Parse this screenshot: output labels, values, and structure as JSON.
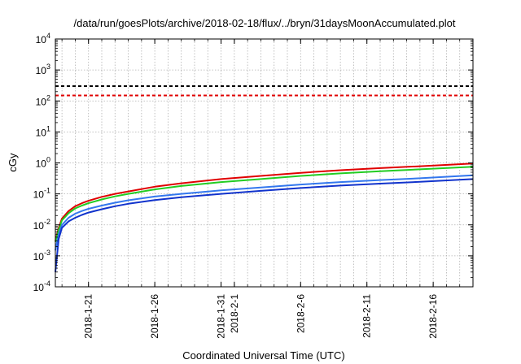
{
  "chart_data": {
    "type": "line",
    "title": "/data/run/goesPlots/archive/2018-02-18/flux/../bryn/31daysMoonAccumulated.plot",
    "xlabel": "Coordinated Universal Time (UTC)",
    "ylabel": "cGy",
    "yscale": "log",
    "ylim": [
      0.0001,
      10000
    ],
    "xlim": [
      "2018-01-18T12:00",
      "2018-02-19T00:00"
    ],
    "grid": true,
    "y_ticks": [
      {
        "base": "10",
        "exp": "-4",
        "value": 0.0001
      },
      {
        "base": "10",
        "exp": "-3",
        "value": 0.001
      },
      {
        "base": "10",
        "exp": "-2",
        "value": 0.01
      },
      {
        "base": "10",
        "exp": "-1",
        "value": 0.1
      },
      {
        "base": "10",
        "exp": "0",
        "value": 1
      },
      {
        "base": "10",
        "exp": "1",
        "value": 10
      },
      {
        "base": "10",
        "exp": "2",
        "value": 100
      },
      {
        "base": "10",
        "exp": "3",
        "value": 1000
      },
      {
        "base": "10",
        "exp": "4",
        "value": 10000
      }
    ],
    "x_ticks": [
      {
        "date": "2018-01-21",
        "label": "2018-1-21"
      },
      {
        "date": "2018-01-26",
        "label": "2018-1-26"
      },
      {
        "date": "2018-01-31",
        "label": "2018-1-31"
      },
      {
        "date": "2018-02-01",
        "label": "2018-2-1"
      },
      {
        "date": "2018-02-06",
        "label": "2018-2-6"
      },
      {
        "date": "2018-02-11",
        "label": "2018-2-11"
      },
      {
        "date": "2018-02-16",
        "label": "2018-2-16"
      }
    ],
    "x_minor_grid": [
      "2018-01-19",
      "2018-01-20",
      "2018-01-21",
      "2018-01-22",
      "2018-01-23",
      "2018-01-24",
      "2018-01-25",
      "2018-01-26",
      "2018-01-27",
      "2018-01-28",
      "2018-01-29",
      "2018-01-30",
      "2018-01-31",
      "2018-02-01",
      "2018-02-02",
      "2018-02-03",
      "2018-02-04",
      "2018-02-05",
      "2018-02-06",
      "2018-02-07",
      "2018-02-08",
      "2018-02-09",
      "2018-02-10",
      "2018-02-11",
      "2018-02-12",
      "2018-02-13",
      "2018-02-14",
      "2018-02-15",
      "2018-02-16",
      "2018-02-17",
      "2018-02-18"
    ],
    "reference_lines": [
      {
        "value": 300,
        "color": "#000000"
      },
      {
        "value": 150,
        "color": "#e00000"
      }
    ],
    "series": [
      {
        "color": "#e00000",
        "x": [
          "2018-01-18T12:00",
          "2018-01-18T18:00",
          "2018-01-19T00:00",
          "2018-01-19T12:00",
          "2018-01-20T00:00",
          "2018-01-20T12:00",
          "2018-01-21T00:00",
          "2018-01-22T00:00",
          "2018-01-23T00:00",
          "2018-01-24T00:00",
          "2018-01-26T00:00",
          "2018-01-28T00:00",
          "2018-01-31T00:00",
          "2018-02-03T00:00",
          "2018-02-06T00:00",
          "2018-02-09T00:00",
          "2018-02-12T00:00",
          "2018-02-15T00:00",
          "2018-02-19T00:00"
        ],
        "values": [
          0.003,
          0.008,
          0.016,
          0.028,
          0.04,
          0.05,
          0.06,
          0.08,
          0.1,
          0.12,
          0.17,
          0.22,
          0.3,
          0.38,
          0.48,
          0.58,
          0.68,
          0.78,
          0.95
        ]
      },
      {
        "color": "#22cc22",
        "x": [
          "2018-01-18T12:00",
          "2018-01-18T18:00",
          "2018-01-19T00:00",
          "2018-01-19T12:00",
          "2018-01-20T00:00",
          "2018-01-20T12:00",
          "2018-01-21T00:00",
          "2018-01-22T00:00",
          "2018-01-23T00:00",
          "2018-01-24T00:00",
          "2018-01-26T00:00",
          "2018-01-28T00:00",
          "2018-01-31T00:00",
          "2018-02-03T00:00",
          "2018-02-06T00:00",
          "2018-02-09T00:00",
          "2018-02-12T00:00",
          "2018-02-15T00:00",
          "2018-02-19T00:00"
        ],
        "values": [
          0.0028,
          0.007,
          0.014,
          0.024,
          0.034,
          0.042,
          0.05,
          0.066,
          0.083,
          0.1,
          0.14,
          0.18,
          0.24,
          0.3,
          0.38,
          0.46,
          0.54,
          0.62,
          0.75
        ]
      },
      {
        "color": "#3377ee",
        "x": [
          "2018-01-18T12:00",
          "2018-01-18T18:00",
          "2018-01-19T00:00",
          "2018-01-19T12:00",
          "2018-01-20T00:00",
          "2018-01-20T12:00",
          "2018-01-21T00:00",
          "2018-01-22T00:00",
          "2018-01-23T00:00",
          "2018-01-24T00:00",
          "2018-01-26T00:00",
          "2018-01-28T00:00",
          "2018-01-31T00:00",
          "2018-02-03T00:00",
          "2018-02-06T00:00",
          "2018-02-09T00:00",
          "2018-02-12T00:00",
          "2018-02-15T00:00",
          "2018-02-19T00:00"
        ],
        "values": [
          0.0015,
          0.005,
          0.01,
          0.017,
          0.023,
          0.028,
          0.033,
          0.042,
          0.052,
          0.062,
          0.082,
          0.1,
          0.13,
          0.16,
          0.2,
          0.24,
          0.28,
          0.32,
          0.4
        ]
      },
      {
        "color": "#1133cc",
        "x": [
          "2018-01-18T12:00",
          "2018-01-18T18:00",
          "2018-01-19T00:00",
          "2018-01-19T12:00",
          "2018-01-20T00:00",
          "2018-01-20T12:00",
          "2018-01-21T00:00",
          "2018-01-22T00:00",
          "2018-01-23T00:00",
          "2018-01-24T00:00",
          "2018-01-26T00:00",
          "2018-01-28T00:00",
          "2018-01-31T00:00",
          "2018-02-03T00:00",
          "2018-02-06T00:00",
          "2018-02-09T00:00",
          "2018-02-12T00:00",
          "2018-02-15T00:00",
          "2018-02-19T00:00"
        ],
        "values": [
          0.0003,
          0.0035,
          0.008,
          0.013,
          0.017,
          0.021,
          0.025,
          0.032,
          0.04,
          0.048,
          0.063,
          0.078,
          0.1,
          0.125,
          0.155,
          0.185,
          0.215,
          0.245,
          0.3
        ]
      }
    ]
  }
}
